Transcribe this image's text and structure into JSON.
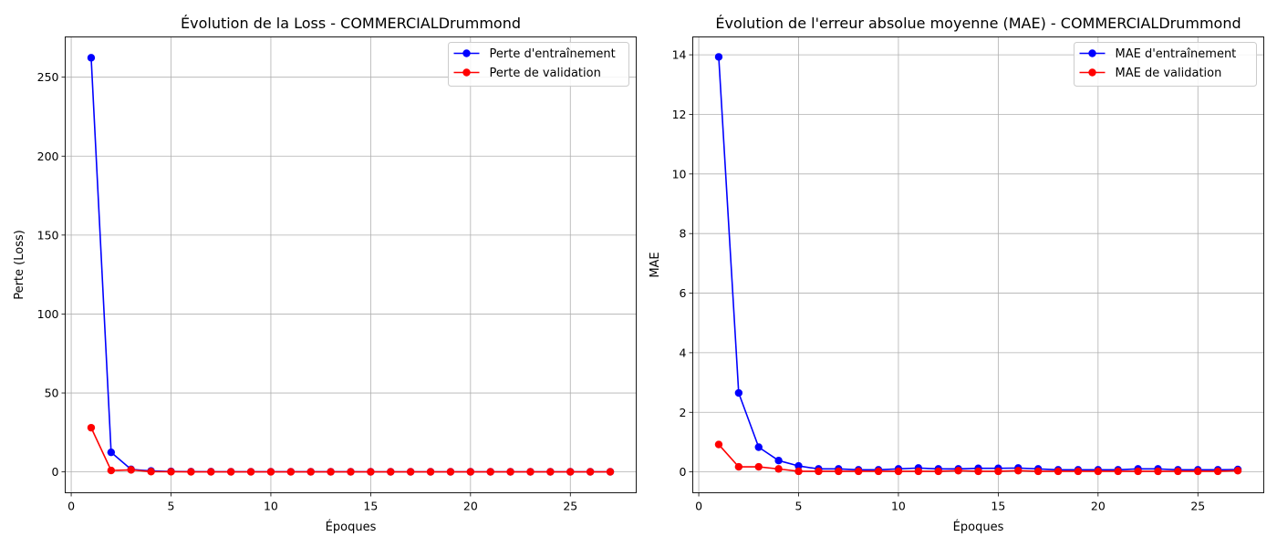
{
  "chart_data": [
    {
      "type": "line",
      "title": "Évolution de la Loss - COMMERCIALDrummond",
      "xlabel": "Époques",
      "ylabel": "Perte (Loss)",
      "xlim": [
        -0.3,
        28.3
      ],
      "ylim": [
        -13.2,
        275.5
      ],
      "xticks": [
        0,
        5,
        10,
        15,
        20,
        25
      ],
      "yticks": [
        0,
        50,
        100,
        150,
        200,
        250
      ],
      "grid": true,
      "legend_position": "top-right",
      "x": [
        1,
        2,
        3,
        4,
        5,
        6,
        7,
        8,
        9,
        10,
        11,
        12,
        13,
        14,
        15,
        16,
        17,
        18,
        19,
        20,
        21,
        22,
        23,
        24,
        25,
        26,
        27
      ],
      "series": [
        {
          "name": "Perte d'entraînement",
          "color": "#0000ff",
          "values": [
            262.3,
            12.4,
            1.6,
            0.6,
            0.3,
            0.2,
            0.15,
            0.12,
            0.1,
            0.1,
            0.1,
            0.09,
            0.09,
            0.09,
            0.08,
            0.08,
            0.08,
            0.08,
            0.08,
            0.08,
            0.08,
            0.08,
            0.08,
            0.08,
            0.08,
            0.08,
            0.08
          ]
        },
        {
          "name": "Perte de validation",
          "color": "#ff0000",
          "values": [
            28.0,
            0.9,
            1.3,
            0.2,
            0.1,
            0.05,
            0.05,
            0.05,
            0.05,
            0.05,
            0.05,
            0.05,
            0.05,
            0.05,
            0.05,
            0.05,
            0.05,
            0.05,
            0.05,
            0.05,
            0.05,
            0.05,
            0.05,
            0.05,
            0.05,
            0.05,
            0.05
          ]
        }
      ]
    },
    {
      "type": "line",
      "title": "Évolution de l'erreur absolue moyenne (MAE) - COMMERCIALDrummond",
      "xlabel": "Époques",
      "ylabel": "MAE",
      "xlim": [
        -0.3,
        28.3
      ],
      "ylim": [
        -0.7,
        14.6
      ],
      "xticks": [
        0,
        5,
        10,
        15,
        20,
        25
      ],
      "yticks": [
        0,
        2,
        4,
        6,
        8,
        10,
        12,
        14
      ],
      "grid": true,
      "legend_position": "top-right",
      "x": [
        1,
        2,
        3,
        4,
        5,
        6,
        7,
        8,
        9,
        10,
        11,
        12,
        13,
        14,
        15,
        16,
        17,
        18,
        19,
        20,
        21,
        22,
        23,
        24,
        25,
        26,
        27
      ],
      "series": [
        {
          "name": "MAE d'entraînement",
          "color": "#0000ff",
          "values": [
            13.93,
            2.65,
            0.83,
            0.38,
            0.2,
            0.1,
            0.1,
            0.07,
            0.07,
            0.1,
            0.13,
            0.1,
            0.1,
            0.12,
            0.12,
            0.13,
            0.1,
            0.07,
            0.07,
            0.07,
            0.07,
            0.1,
            0.1,
            0.07,
            0.07,
            0.07,
            0.08
          ]
        },
        {
          "name": "MAE de validation",
          "color": "#ff0000",
          "values": [
            0.92,
            0.17,
            0.17,
            0.1,
            0.02,
            0.02,
            0.02,
            0.02,
            0.02,
            0.02,
            0.02,
            0.02,
            0.04,
            0.02,
            0.02,
            0.04,
            0.02,
            0.02,
            0.02,
            0.02,
            0.02,
            0.02,
            0.02,
            0.02,
            0.02,
            0.02,
            0.04
          ]
        }
      ]
    }
  ]
}
